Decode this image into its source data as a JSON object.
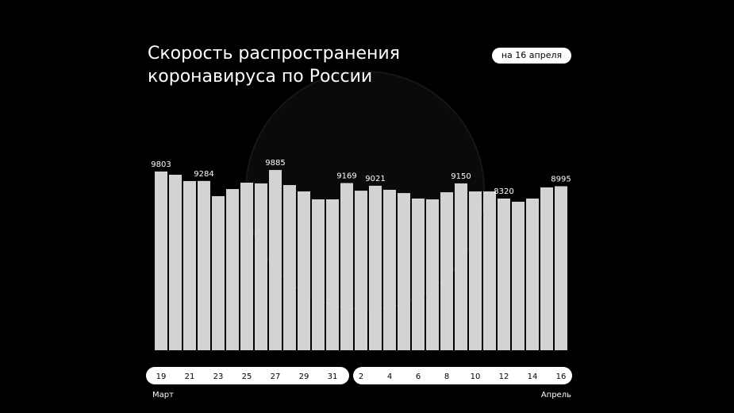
{
  "chart_data": {
    "type": "bar",
    "title": [
      "Скорость распространения",
      "коронавируса по России"
    ],
    "badge": "на 16 апреля",
    "months": [
      "Март",
      "Апрель"
    ],
    "categories": [
      "19",
      null,
      "21",
      null,
      "23",
      null,
      "25",
      null,
      "27",
      null,
      "29",
      null,
      "31",
      null,
      "2",
      null,
      "4",
      null,
      "6",
      null,
      "8",
      null,
      "10",
      null,
      "12",
      null,
      "14",
      null,
      "16"
    ],
    "values": [
      9803,
      9625,
      9280,
      9284,
      8450,
      8840,
      9190,
      9150,
      9885,
      9060,
      8710,
      8275,
      8275,
      9169,
      8750,
      9021,
      8800,
      8620,
      8320,
      8275,
      8665,
      9150,
      8710,
      8710,
      8320,
      8145,
      8320,
      8930,
      8995
    ],
    "value_labels": [
      "9803",
      null,
      null,
      "9284",
      null,
      null,
      null,
      null,
      "9885",
      null,
      null,
      null,
      null,
      "9169",
      null,
      "9021",
      null,
      null,
      null,
      null,
      null,
      "9150",
      null,
      null,
      "8320",
      null,
      null,
      null,
      "8995"
    ],
    "color": "#d3d3d3"
  }
}
